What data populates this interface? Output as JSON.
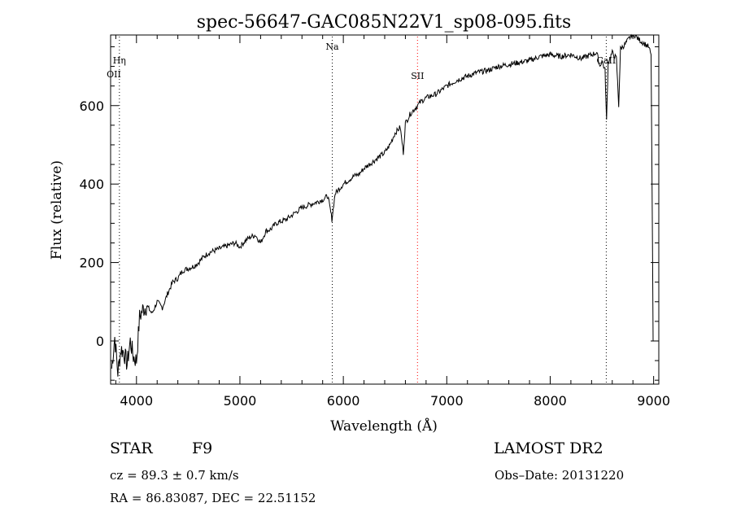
{
  "chart_data": {
    "type": "line",
    "title": "spec-56647-GAC085N22V1_sp08-095.fits",
    "xlabel": "Wavelength (Å)",
    "ylabel": "Flux (relative)",
    "xlim": [
      3750,
      9050
    ],
    "ylim": [
      -110,
      780
    ],
    "x_ticks": [
      4000,
      5000,
      6000,
      7000,
      8000,
      9000
    ],
    "y_ticks": [
      0,
      200,
      400,
      600
    ],
    "grid": false,
    "line_color": "#000000",
    "line_markers": [
      {
        "label": "Hη",
        "x": 3835,
        "color": "#000000"
      },
      {
        "label": "OII",
        "x": 3728,
        "color": "#000000"
      },
      {
        "label": "Na",
        "x": 5893,
        "color": "#000000"
      },
      {
        "label": "SII",
        "x": 6717,
        "color": "#ff0000"
      },
      {
        "label": "CaII",
        "x": 8542,
        "color": "#000000"
      }
    ],
    "series": [
      {
        "x": [
          3760,
          3790,
          3820,
          3850,
          3880,
          3910,
          3940,
          3970,
          4000,
          4030,
          4060,
          4100,
          4150,
          4200,
          4250,
          4300,
          4350,
          4400,
          4450,
          4500,
          4550,
          4600,
          4650,
          4700,
          4750,
          4800,
          4850,
          4900,
          4950,
          5000,
          5050,
          5100,
          5150,
          5200,
          5250,
          5300,
          5350,
          5400,
          5450,
          5500,
          5550,
          5600,
          5650,
          5700,
          5750,
          5800,
          5850,
          5890,
          5920,
          5950,
          6000,
          6050,
          6100,
          6150,
          6200,
          6250,
          6300,
          6350,
          6400,
          6450,
          6500,
          6550,
          6580,
          6600,
          6650,
          6700,
          6750,
          6800,
          6850,
          6900,
          6950,
          7000,
          7100,
          7200,
          7300,
          7400,
          7500,
          7600,
          7700,
          7800,
          7900,
          8000,
          8100,
          8200,
          8300,
          8400,
          8450,
          8480,
          8500,
          8530,
          8545,
          8560,
          8600,
          8640,
          8662,
          8680,
          8720,
          8760,
          8800,
          8850,
          8900,
          8950,
          8975,
          8985,
          8995,
          9000
        ],
        "y": [
          -70,
          10,
          -80,
          -20,
          -30,
          -60,
          0,
          -40,
          -50,
          60,
          80,
          90,
          70,
          100,
          85,
          120,
          150,
          160,
          180,
          185,
          190,
          200,
          215,
          225,
          230,
          235,
          240,
          245,
          250,
          240,
          255,
          265,
          270,
          250,
          280,
          285,
          300,
          305,
          310,
          320,
          330,
          340,
          345,
          350,
          355,
          360,
          370,
          310,
          375,
          385,
          400,
          410,
          420,
          425,
          440,
          450,
          460,
          470,
          480,
          500,
          530,
          545,
          480,
          555,
          580,
          595,
          610,
          620,
          625,
          630,
          640,
          650,
          665,
          675,
          685,
          690,
          700,
          705,
          710,
          715,
          725,
          730,
          725,
          730,
          720,
          730,
          735,
          700,
          715,
          690,
          560,
          710,
          735,
          720,
          600,
          745,
          755,
          770,
          785,
          770,
          760,
          750,
          730,
          400,
          0,
          0
        ]
      }
    ]
  },
  "info": {
    "object_class": "STAR",
    "subclass": "F9",
    "survey": "LAMOST DR2",
    "cz": "cz = 89.3 ± 0.7 km/s",
    "obs_date": "Obs–Date: 20131220",
    "radec": "RA =  86.83087, DEC =  22.51152"
  }
}
